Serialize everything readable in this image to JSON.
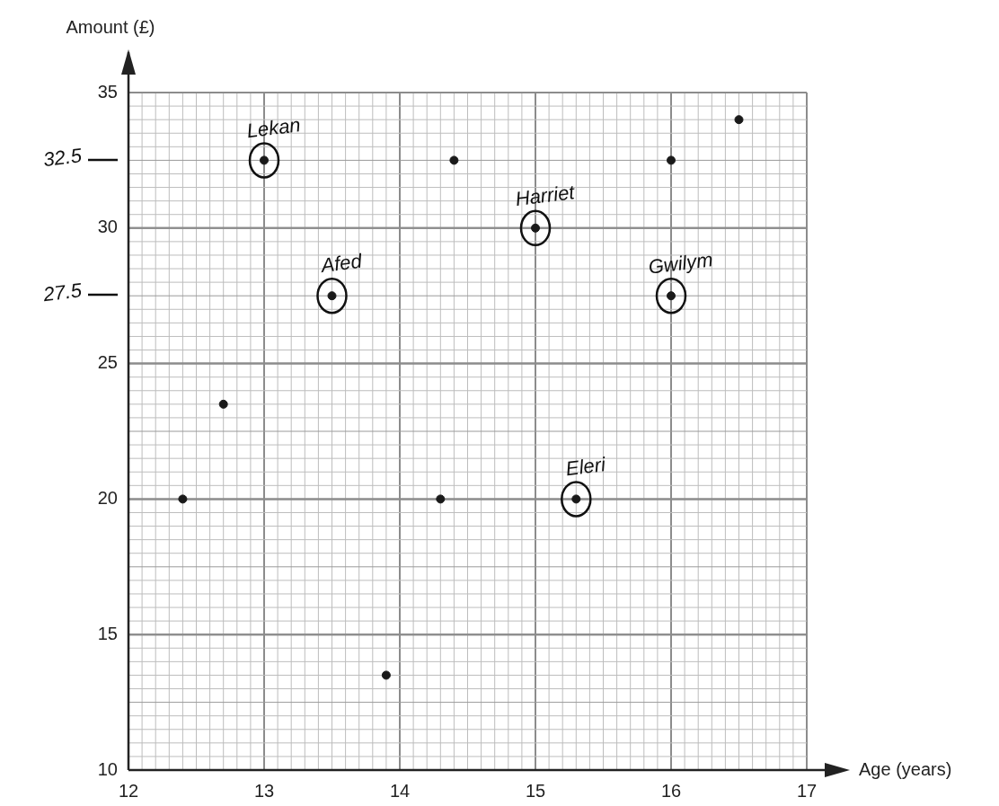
{
  "chart_data": {
    "type": "scatter",
    "xlabel": "Age (years)",
    "ylabel": "Amount (£)",
    "x": [
      12.4,
      12.7,
      13,
      13.5,
      13.9,
      14.3,
      14.4,
      15,
      15.3,
      16,
      16,
      16.5
    ],
    "values": [
      20,
      23.5,
      32.5,
      27.5,
      13.5,
      20,
      32.5,
      30,
      20,
      27.5,
      32.5,
      34
    ],
    "color": "#1a1a1a",
    "marker": "circle",
    "xlim": [
      12,
      17
    ],
    "ylim": [
      10,
      35
    ],
    "xticks": [
      12,
      13,
      14,
      15,
      16,
      17
    ],
    "yticks": [
      10,
      15,
      20,
      25,
      30,
      35
    ],
    "grid": true,
    "annotations": [
      {
        "text": "Lekan",
        "x": 13,
        "y": 32.5
      },
      {
        "text": "Afed",
        "x": 13.5,
        "y": 27.5
      },
      {
        "text": "Harriet",
        "x": 15,
        "y": 30
      },
      {
        "text": "Gwilym",
        "x": 16,
        "y": 27.5
      },
      {
        "text": "Eleri",
        "x": 15.3,
        "y": 20
      },
      "32.5",
      "27.5"
    ]
  }
}
